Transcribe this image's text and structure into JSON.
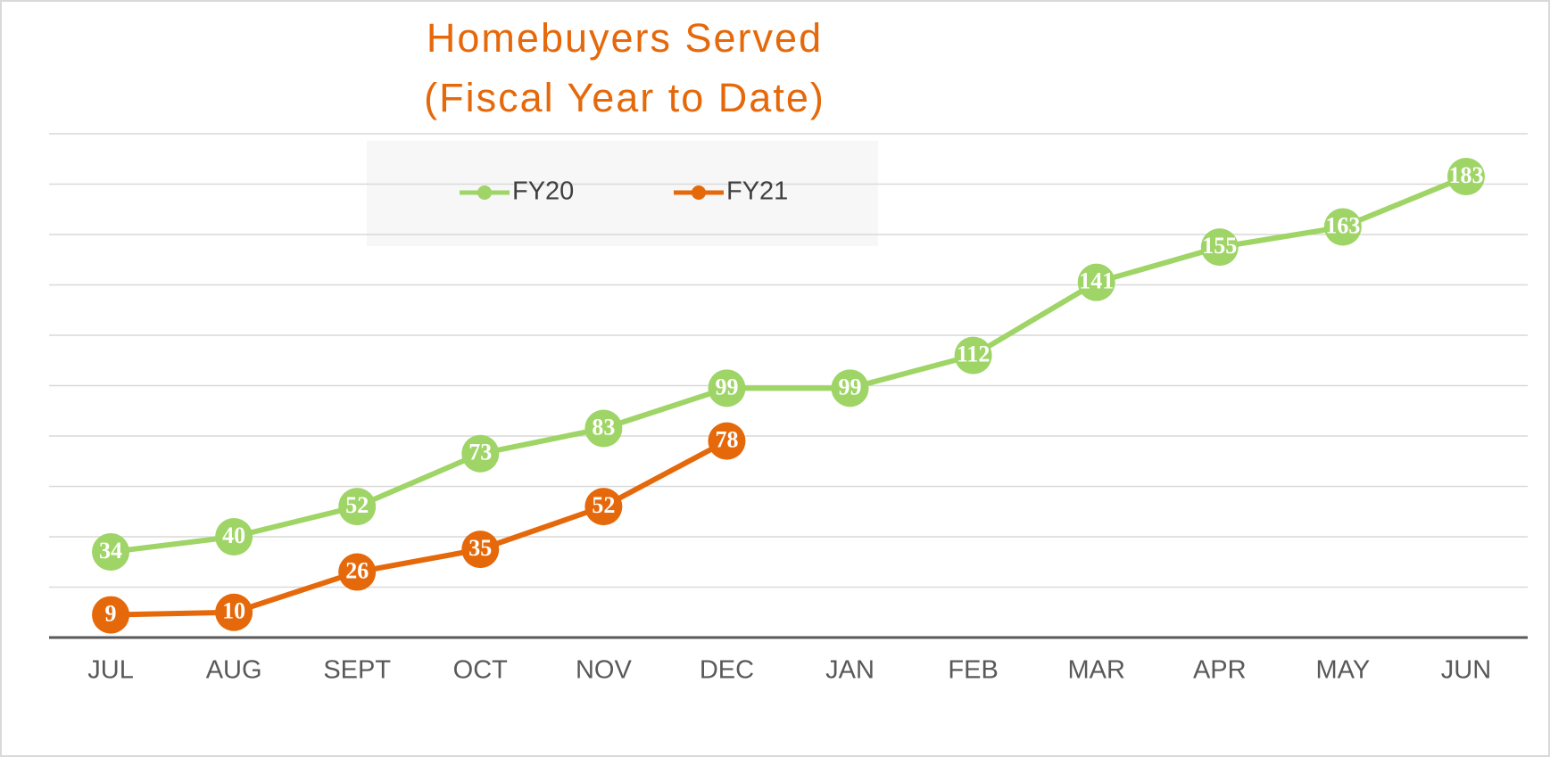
{
  "chart_data": {
    "type": "line",
    "title": [
      "Homebuyers Served",
      "(Fiscal Year to Date)"
    ],
    "categories": [
      "JUL",
      "AUG",
      "SEPT",
      "OCT",
      "NOV",
      "DEC",
      "JAN",
      "FEB",
      "MAR",
      "APR",
      "MAY",
      "JUN"
    ],
    "series": [
      {
        "name": "FY20",
        "color": "#9fd466",
        "values": [
          34,
          40,
          52,
          73,
          83,
          99,
          99,
          112,
          141,
          155,
          163,
          183
        ]
      },
      {
        "name": "FY21",
        "color": "#e5690b",
        "values": [
          9,
          10,
          26,
          35,
          52,
          78,
          null,
          null,
          null,
          null,
          null,
          null
        ]
      }
    ],
    "ylim": [
      0,
      200
    ],
    "yticks": [
      0,
      20,
      40,
      60,
      80,
      100,
      120,
      140,
      160,
      180,
      200
    ],
    "grid": true,
    "legend": "top",
    "title_color": "#e5690b"
  }
}
